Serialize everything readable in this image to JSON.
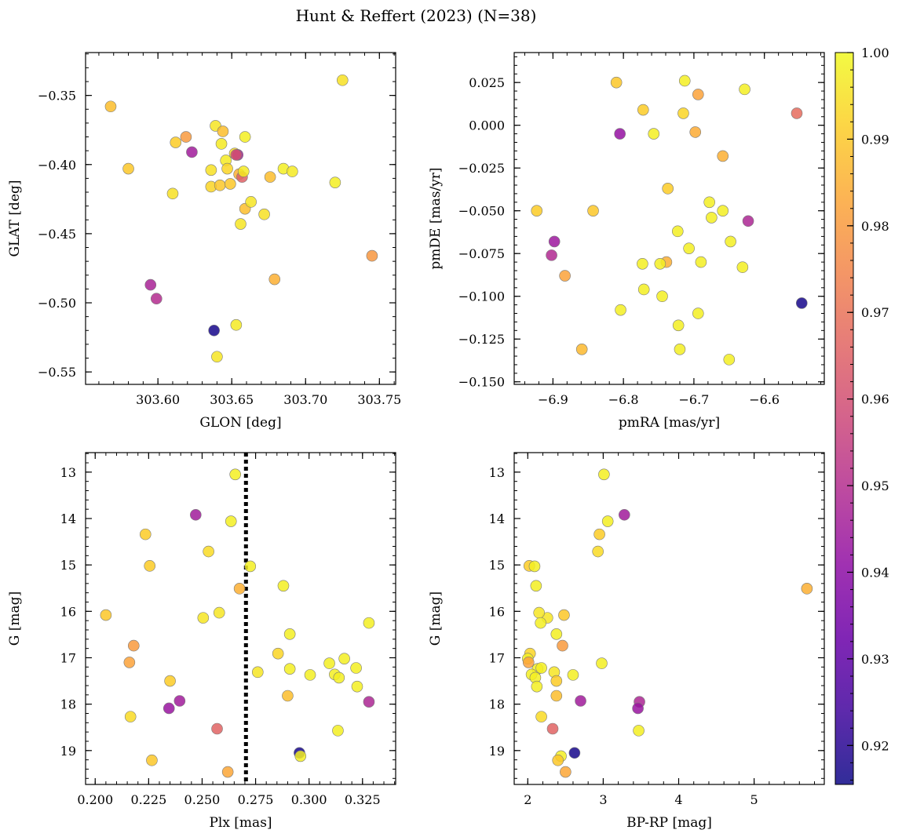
{
  "figure": {
    "title": "Hunt & Reffert (2023) (N=38)"
  },
  "colorbar": {
    "colormap": "plasma",
    "range": [
      0.9155,
      1.0
    ],
    "ticks": [
      "0.92",
      "0.93",
      "0.94",
      "0.95",
      "0.96",
      "0.97",
      "0.98",
      "0.99",
      "1.00"
    ]
  },
  "chart_data": [
    {
      "type": "scatter",
      "xlabel": "GLON [deg]",
      "ylabel": "GLAT [deg]",
      "xlim": [
        303.551,
        303.761
      ],
      "ylim": [
        -0.559,
        -0.319
      ],
      "x_ticks": [
        "303.60",
        "303.65",
        "303.70",
        "303.75"
      ],
      "y_ticks": [
        "−0.35",
        "−0.40",
        "−0.45",
        "−0.50",
        "−0.55"
      ],
      "points": [
        {
          "x": 303.568,
          "y": -0.358,
          "c": 0.988
        },
        {
          "x": 303.58,
          "y": -0.403,
          "c": 0.99
        },
        {
          "x": 303.61,
          "y": -0.421,
          "c": 0.995
        },
        {
          "x": 303.612,
          "y": -0.384,
          "c": 0.991
        },
        {
          "x": 303.619,
          "y": -0.38,
          "c": 0.98
        },
        {
          "x": 303.623,
          "y": -0.391,
          "c": 0.945
        },
        {
          "x": 303.636,
          "y": -0.404,
          "c": 0.995
        },
        {
          "x": 303.636,
          "y": -0.416,
          "c": 0.993
        },
        {
          "x": 303.639,
          "y": -0.372,
          "c": 0.996
        },
        {
          "x": 303.642,
          "y": -0.415,
          "c": 0.99
        },
        {
          "x": 303.643,
          "y": -0.385,
          "c": 0.997
        },
        {
          "x": 303.644,
          "y": -0.376,
          "c": 0.988
        },
        {
          "x": 303.646,
          "y": -0.397,
          "c": 0.997
        },
        {
          "x": 303.647,
          "y": -0.403,
          "c": 0.993
        },
        {
          "x": 303.649,
          "y": -0.414,
          "c": 0.99
        },
        {
          "x": 303.652,
          "y": -0.392,
          "c": 0.994
        },
        {
          "x": 303.654,
          "y": -0.393,
          "c": 0.945
        },
        {
          "x": 303.655,
          "y": -0.407,
          "c": 0.985
        },
        {
          "x": 303.657,
          "y": -0.409,
          "c": 0.965
        },
        {
          "x": 303.658,
          "y": -0.405,
          "c": 0.997
        },
        {
          "x": 303.659,
          "y": -0.38,
          "c": 0.998
        },
        {
          "x": 303.656,
          "y": -0.443,
          "c": 0.996
        },
        {
          "x": 303.659,
          "y": -0.432,
          "c": 0.988
        },
        {
          "x": 303.663,
          "y": -0.427,
          "c": 0.996
        },
        {
          "x": 303.672,
          "y": -0.436,
          "c": 0.995
        },
        {
          "x": 303.676,
          "y": -0.409,
          "c": 0.988
        },
        {
          "x": 303.685,
          "y": -0.403,
          "c": 0.998
        },
        {
          "x": 303.691,
          "y": -0.405,
          "c": 0.997
        },
        {
          "x": 303.72,
          "y": -0.413,
          "c": 0.998
        },
        {
          "x": 303.725,
          "y": -0.339,
          "c": 0.995
        },
        {
          "x": 303.679,
          "y": -0.483,
          "c": 0.985
        },
        {
          "x": 303.745,
          "y": -0.466,
          "c": 0.979
        },
        {
          "x": 303.595,
          "y": -0.487,
          "c": 0.947
        },
        {
          "x": 303.599,
          "y": -0.497,
          "c": 0.95
        },
        {
          "x": 303.638,
          "y": -0.52,
          "c": 0.917
        },
        {
          "x": 303.653,
          "y": -0.516,
          "c": 0.997
        },
        {
          "x": 303.64,
          "y": -0.539,
          "c": 0.996
        },
        {
          "x": 303.653,
          "y": -0.393,
          "c": 0.96
        }
      ]
    },
    {
      "type": "scatter",
      "xlabel": "pmRA [mas/yr]",
      "ylabel": "pmDE [mas/yr]",
      "xlim": [
        -6.955,
        -6.515
      ],
      "ylim": [
        -0.1515,
        0.0425
      ],
      "x_ticks": [
        "−6.9",
        "−6.8",
        "−6.7",
        "−6.6"
      ],
      "y_ticks": [
        "0.025",
        "0.000",
        "−0.025",
        "−0.050",
        "−0.075",
        "−0.100",
        "−0.125",
        "−0.150"
      ],
      "points": [
        {
          "x": -6.81,
          "y": 0.025,
          "c": 0.99
        },
        {
          "x": -6.713,
          "y": 0.026,
          "c": 0.998
        },
        {
          "x": -6.694,
          "y": 0.018,
          "c": 0.982
        },
        {
          "x": -6.628,
          "y": 0.021,
          "c": 0.998
        },
        {
          "x": -6.772,
          "y": 0.009,
          "c": 0.991
        },
        {
          "x": -6.715,
          "y": 0.007,
          "c": 0.993
        },
        {
          "x": -6.554,
          "y": 0.007,
          "c": 0.968
        },
        {
          "x": -6.805,
          "y": -0.005,
          "c": 0.942
        },
        {
          "x": -6.757,
          "y": -0.005,
          "c": 0.998
        },
        {
          "x": -6.698,
          "y": -0.004,
          "c": 0.984
        },
        {
          "x": -6.659,
          "y": -0.018,
          "c": 0.985
        },
        {
          "x": -6.737,
          "y": -0.037,
          "c": 0.991
        },
        {
          "x": -6.678,
          "y": -0.045,
          "c": 0.998
        },
        {
          "x": -6.923,
          "y": -0.05,
          "c": 0.991
        },
        {
          "x": -6.843,
          "y": -0.05,
          "c": 0.99
        },
        {
          "x": -6.659,
          "y": -0.05,
          "c": 0.998
        },
        {
          "x": -6.675,
          "y": -0.054,
          "c": 0.998
        },
        {
          "x": -6.623,
          "y": -0.056,
          "c": 0.948
        },
        {
          "x": -6.723,
          "y": -0.062,
          "c": 0.998
        },
        {
          "x": -6.898,
          "y": -0.068,
          "c": 0.944
        },
        {
          "x": -6.648,
          "y": -0.068,
          "c": 0.998
        },
        {
          "x": -6.707,
          "y": -0.072,
          "c": 0.998
        },
        {
          "x": -6.902,
          "y": -0.076,
          "c": 0.949
        },
        {
          "x": -6.739,
          "y": -0.08,
          "c": 0.985
        },
        {
          "x": -6.748,
          "y": -0.081,
          "c": 0.998
        },
        {
          "x": -6.773,
          "y": -0.081,
          "c": 0.998
        },
        {
          "x": -6.69,
          "y": -0.08,
          "c": 0.998
        },
        {
          "x": -6.631,
          "y": -0.083,
          "c": 0.998
        },
        {
          "x": -6.883,
          "y": -0.088,
          "c": 0.982
        },
        {
          "x": -6.771,
          "y": -0.096,
          "c": 0.998
        },
        {
          "x": -6.745,
          "y": -0.1,
          "c": 0.998
        },
        {
          "x": -6.547,
          "y": -0.104,
          "c": 0.917
        },
        {
          "x": -6.804,
          "y": -0.108,
          "c": 0.998
        },
        {
          "x": -6.694,
          "y": -0.11,
          "c": 0.998
        },
        {
          "x": -6.722,
          "y": -0.117,
          "c": 0.998
        },
        {
          "x": -6.859,
          "y": -0.131,
          "c": 0.987
        },
        {
          "x": -6.72,
          "y": -0.131,
          "c": 0.998
        },
        {
          "x": -6.65,
          "y": -0.137,
          "c": 0.998
        }
      ]
    },
    {
      "type": "scatter",
      "xlabel": "Plx [mas]",
      "ylabel": "G [mag]",
      "xlim": [
        0.1955,
        0.3405
      ],
      "ylim": [
        19.73,
        12.58
      ],
      "y_inverted": true,
      "x_ticks": [
        "0.200",
        "0.225",
        "0.250",
        "0.275",
        "0.300",
        "0.325"
      ],
      "y_ticks": [
        "13",
        "14",
        "15",
        "16",
        "17",
        "18",
        "19"
      ],
      "vline": {
        "x": 0.2705,
        "style": "dotted",
        "color": "#000000"
      },
      "points": [
        {
          "x": 0.2655,
          "y": 13.05,
          "c": 0.998
        },
        {
          "x": 0.247,
          "y": 13.92,
          "c": 0.945
        },
        {
          "x": 0.2635,
          "y": 14.06,
          "c": 0.998
        },
        {
          "x": 0.2235,
          "y": 14.34,
          "c": 0.991
        },
        {
          "x": 0.253,
          "y": 14.71,
          "c": 0.994
        },
        {
          "x": 0.2255,
          "y": 15.02,
          "c": 0.991
        },
        {
          "x": 0.2725,
          "y": 15.03,
          "c": 0.998
        },
        {
          "x": 0.2675,
          "y": 15.51,
          "c": 0.985
        },
        {
          "x": 0.288,
          "y": 15.45,
          "c": 0.998
        },
        {
          "x": 0.205,
          "y": 16.08,
          "c": 0.99
        },
        {
          "x": 0.2505,
          "y": 16.14,
          "c": 0.996
        },
        {
          "x": 0.258,
          "y": 16.03,
          "c": 0.996
        },
        {
          "x": 0.328,
          "y": 16.25,
          "c": 0.998
        },
        {
          "x": 0.291,
          "y": 16.49,
          "c": 0.998
        },
        {
          "x": 0.218,
          "y": 16.74,
          "c": 0.98
        },
        {
          "x": 0.2855,
          "y": 16.91,
          "c": 0.993
        },
        {
          "x": 0.3165,
          "y": 17.02,
          "c": 0.998
        },
        {
          "x": 0.216,
          "y": 17.1,
          "c": 0.982
        },
        {
          "x": 0.3095,
          "y": 17.12,
          "c": 0.998
        },
        {
          "x": 0.291,
          "y": 17.24,
          "c": 0.998
        },
        {
          "x": 0.322,
          "y": 17.22,
          "c": 0.998
        },
        {
          "x": 0.276,
          "y": 17.31,
          "c": 0.996
        },
        {
          "x": 0.3005,
          "y": 17.37,
          "c": 0.998
        },
        {
          "x": 0.312,
          "y": 17.36,
          "c": 0.998
        },
        {
          "x": 0.314,
          "y": 17.43,
          "c": 0.998
        },
        {
          "x": 0.235,
          "y": 17.5,
          "c": 0.991
        },
        {
          "x": 0.3225,
          "y": 17.62,
          "c": 0.998
        },
        {
          "x": 0.29,
          "y": 17.82,
          "c": 0.988
        },
        {
          "x": 0.2395,
          "y": 17.93,
          "c": 0.945
        },
        {
          "x": 0.328,
          "y": 17.95,
          "c": 0.948
        },
        {
          "x": 0.2345,
          "y": 18.09,
          "c": 0.943
        },
        {
          "x": 0.2165,
          "y": 18.27,
          "c": 0.994
        },
        {
          "x": 0.257,
          "y": 18.53,
          "c": 0.966
        },
        {
          "x": 0.3135,
          "y": 18.57,
          "c": 0.998
        },
        {
          "x": 0.2955,
          "y": 19.05,
          "c": 0.917
        },
        {
          "x": 0.296,
          "y": 19.12,
          "c": 0.998
        },
        {
          "x": 0.2265,
          "y": 19.21,
          "c": 0.99
        },
        {
          "x": 0.262,
          "y": 19.46,
          "c": 0.983
        }
      ]
    },
    {
      "type": "scatter",
      "xlabel": "BP-RP [mag]",
      "ylabel": "G [mag]",
      "xlim": [
        1.82,
        5.93
      ],
      "ylim": [
        19.73,
        12.58
      ],
      "y_inverted": true,
      "x_ticks": [
        "2",
        "3",
        "4",
        "5"
      ],
      "y_ticks": [
        "13",
        "14",
        "15",
        "16",
        "17",
        "18",
        "19"
      ],
      "points": [
        {
          "x": 3.01,
          "y": 13.05,
          "c": 0.998
        },
        {
          "x": 3.28,
          "y": 13.92,
          "c": 0.945
        },
        {
          "x": 3.06,
          "y": 14.06,
          "c": 0.998
        },
        {
          "x": 2.95,
          "y": 14.34,
          "c": 0.991
        },
        {
          "x": 2.93,
          "y": 14.71,
          "c": 0.994
        },
        {
          "x": 2.02,
          "y": 15.02,
          "c": 0.991
        },
        {
          "x": 2.09,
          "y": 15.03,
          "c": 0.998
        },
        {
          "x": 5.7,
          "y": 15.51,
          "c": 0.985
        },
        {
          "x": 2.11,
          "y": 15.45,
          "c": 0.998
        },
        {
          "x": 2.48,
          "y": 16.08,
          "c": 0.99
        },
        {
          "x": 2.26,
          "y": 16.14,
          "c": 0.996
        },
        {
          "x": 2.15,
          "y": 16.03,
          "c": 0.996
        },
        {
          "x": 2.17,
          "y": 16.25,
          "c": 0.998
        },
        {
          "x": 2.38,
          "y": 16.49,
          "c": 0.998
        },
        {
          "x": 2.46,
          "y": 16.74,
          "c": 0.98
        },
        {
          "x": 2.03,
          "y": 16.91,
          "c": 0.993
        },
        {
          "x": 2.0,
          "y": 17.02,
          "c": 0.998
        },
        {
          "x": 2.01,
          "y": 17.1,
          "c": 0.982
        },
        {
          "x": 2.98,
          "y": 17.12,
          "c": 0.998
        },
        {
          "x": 2.13,
          "y": 17.24,
          "c": 0.998
        },
        {
          "x": 2.18,
          "y": 17.22,
          "c": 0.998
        },
        {
          "x": 2.35,
          "y": 17.31,
          "c": 0.996
        },
        {
          "x": 2.6,
          "y": 17.37,
          "c": 0.998
        },
        {
          "x": 2.05,
          "y": 17.36,
          "c": 0.998
        },
        {
          "x": 2.1,
          "y": 17.43,
          "c": 0.998
        },
        {
          "x": 2.38,
          "y": 17.5,
          "c": 0.991
        },
        {
          "x": 2.12,
          "y": 17.62,
          "c": 0.998
        },
        {
          "x": 2.38,
          "y": 17.82,
          "c": 0.988
        },
        {
          "x": 2.7,
          "y": 17.93,
          "c": 0.945
        },
        {
          "x": 3.48,
          "y": 17.95,
          "c": 0.948
        },
        {
          "x": 3.46,
          "y": 18.09,
          "c": 0.943
        },
        {
          "x": 2.18,
          "y": 18.27,
          "c": 0.994
        },
        {
          "x": 2.33,
          "y": 18.53,
          "c": 0.966
        },
        {
          "x": 3.47,
          "y": 18.57,
          "c": 0.998
        },
        {
          "x": 2.62,
          "y": 19.05,
          "c": 0.917
        },
        {
          "x": 2.44,
          "y": 19.12,
          "c": 0.998
        },
        {
          "x": 2.4,
          "y": 19.21,
          "c": 0.99
        },
        {
          "x": 2.5,
          "y": 19.46,
          "c": 0.983
        }
      ]
    }
  ]
}
